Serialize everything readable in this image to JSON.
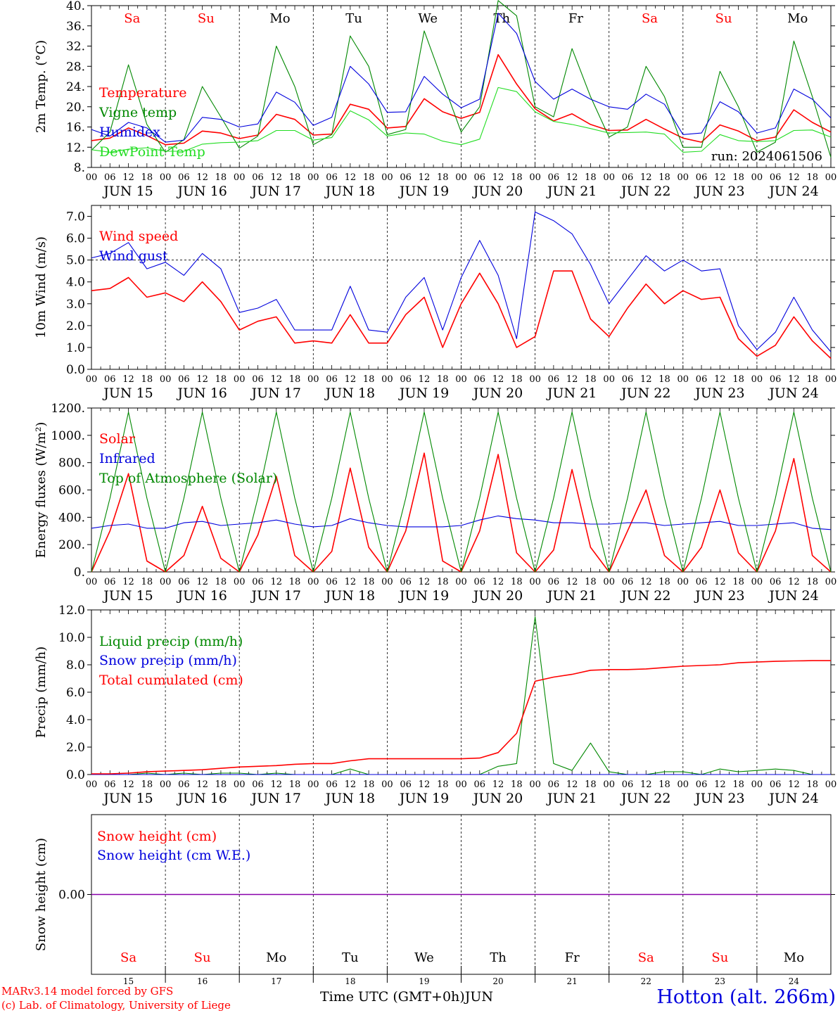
{
  "colors": {
    "red": "#ff0000",
    "green": "#008800",
    "blue": "#0000dd",
    "lightgreen": "#22dd22",
    "purple": "#8800aa",
    "black": "#000000"
  },
  "x_axis": {
    "hour_labels": [
      "00",
      "06",
      "12",
      "18"
    ],
    "end_hour_label": "00",
    "date_labels": [
      "JUN 15",
      "JUN 16",
      "JUN 17",
      "JUN 18",
      "JUN 19",
      "JUN 20",
      "JUN 21",
      "JUN 22",
      "JUN 23",
      "JUN 24"
    ],
    "weekdays": [
      "Sa",
      "Su",
      "Mo",
      "Tu",
      "We",
      "Th",
      "Fr",
      "Sa",
      "Su",
      "Mo"
    ],
    "weekday_colors": [
      "red",
      "red",
      "black",
      "black",
      "black",
      "black",
      "black",
      "red",
      "red",
      "black"
    ],
    "bottom_days": [
      "15",
      "16",
      "17",
      "18",
      "19",
      "20",
      "21",
      "22",
      "23",
      "24"
    ]
  },
  "footer": {
    "model_line": "MARv3.14 model forced by GFS",
    "lab_line": "(c) Lab. of Climatology, University of Liege",
    "time_label": "Time UTC (GMT+0h)",
    "month_label": "JUN",
    "station": "Hotton (alt. 266m)"
  },
  "run_label": "run: 2024061506",
  "chart_data": [
    {
      "type": "line",
      "ylabel": "2m Temp. (°C)",
      "ylim": [
        8,
        40
      ],
      "yticks": [
        8,
        12,
        16,
        20,
        24,
        28,
        32,
        36,
        40
      ],
      "ytick_labels": [
        "8.",
        "12.",
        "16.",
        "20.",
        "24.",
        "28.",
        "32.",
        "36.",
        "40."
      ],
      "show_weekdays": true,
      "show_run_label": true,
      "hours_per_point": 6,
      "series": [
        {
          "name": "Temperature",
          "color": "red",
          "values": [
            13.3,
            13.8,
            15.8,
            14.3,
            12.5,
            12.8,
            15.2,
            14.8,
            13.7,
            14.4,
            18.5,
            17.5,
            14.4,
            14.6,
            20.5,
            19.5,
            15.8,
            16.1,
            21.6,
            19.0,
            17.7,
            18.9,
            30.3,
            24.5,
            19.6,
            17.2,
            18.6,
            16.5,
            15.3,
            15.4,
            17.5,
            15.6,
            13.8,
            13.0,
            16.4,
            15.2,
            13.3,
            14.0,
            19.4,
            16.9,
            15.0
          ]
        },
        {
          "name": "Vigne temp",
          "color": "green",
          "values": [
            11.4,
            15.0,
            28.3,
            16.5,
            11.0,
            13.5,
            24.0,
            18.0,
            11.8,
            14.2,
            32.0,
            24.0,
            12.5,
            14.5,
            34.0,
            28.0,
            14.5,
            15.5,
            35.0,
            25.0,
            15.0,
            20.0,
            41.0,
            38.0,
            20.0,
            18.0,
            31.5,
            22.0,
            14.0,
            16.0,
            28.0,
            22.0,
            12.0,
            12.0,
            27.0,
            20.0,
            11.0,
            13.0,
            33.0,
            22.0,
            10.0
          ]
        },
        {
          "name": "Humidex",
          "color": "blue",
          "values": [
            15.5,
            14.2,
            16.9,
            15.8,
            13.0,
            13.4,
            17.9,
            17.5,
            16.0,
            16.6,
            22.9,
            20.9,
            16.3,
            17.9,
            28.0,
            24.5,
            18.9,
            19.0,
            26.0,
            22.5,
            19.8,
            21.5,
            38.5,
            34.5,
            25.0,
            21.5,
            23.5,
            21.5,
            20.0,
            19.5,
            22.5,
            20.5,
            14.5,
            14.8,
            21.0,
            19.0,
            14.8,
            15.8,
            23.5,
            21.5,
            17.8
          ]
        },
        {
          "name": "DewPoint Temp",
          "color": "lightgreen",
          "values": [
            11.5,
            11.0,
            11.6,
            11.9,
            11.2,
            11.2,
            12.6,
            12.9,
            13.0,
            13.3,
            15.3,
            15.3,
            13.4,
            13.9,
            19.2,
            17.4,
            14.2,
            14.8,
            14.6,
            13.2,
            12.5,
            13.6,
            23.8,
            23.0,
            19.0,
            17.1,
            16.5,
            15.7,
            14.8,
            14.9,
            15.0,
            14.6,
            11.0,
            11.2,
            14.5,
            13.3,
            13.1,
            13.3,
            15.3,
            15.4,
            14.0
          ]
        }
      ],
      "legend_placement": "left"
    },
    {
      "type": "line",
      "ylabel": "10m Wind (m/s)",
      "ylim": [
        0,
        7.5
      ],
      "yticks": [
        0,
        1,
        2,
        3,
        4,
        5,
        6,
        7
      ],
      "ytick_labels": [
        "0.0",
        "1.0",
        "2.0",
        "3.0",
        "4.0",
        "5.0",
        "6.0",
        "7.0"
      ],
      "hline": 5.0,
      "hours_per_point": 6,
      "series": [
        {
          "name": "Wind speed",
          "color": "red",
          "values": [
            3.6,
            3.7,
            4.2,
            3.3,
            3.5,
            3.1,
            4.0,
            3.1,
            1.8,
            2.2,
            2.4,
            1.2,
            1.3,
            1.2,
            2.5,
            1.2,
            1.2,
            2.5,
            3.3,
            1.0,
            3.0,
            4.4,
            3.0,
            1.0,
            1.5,
            4.5,
            4.5,
            2.3,
            1.5,
            2.8,
            3.9,
            3.0,
            3.6,
            3.2,
            3.3,
            1.4,
            0.6,
            1.1,
            2.4,
            1.3,
            0.5
          ]
        },
        {
          "name": "Wind gust",
          "color": "blue",
          "values": [
            5.1,
            5.3,
            5.8,
            4.6,
            4.9,
            4.3,
            5.3,
            4.6,
            2.6,
            2.8,
            3.2,
            1.8,
            1.8,
            1.8,
            3.8,
            1.8,
            1.7,
            3.3,
            4.2,
            1.8,
            4.2,
            5.9,
            4.3,
            1.4,
            7.2,
            6.8,
            6.2,
            4.8,
            3.0,
            4.1,
            5.2,
            4.5,
            5.0,
            4.5,
            4.6,
            2.0,
            0.9,
            1.7,
            3.3,
            1.8,
            0.8
          ]
        }
      ],
      "legend_placement": "left"
    },
    {
      "type": "line",
      "ylabel": "Energy fluxes (W/m²)",
      "ylim": [
        0,
        1200
      ],
      "yticks": [
        0,
        200,
        400,
        600,
        800,
        1000,
        1200
      ],
      "ytick_labels": [
        "0.",
        "200.",
        "400.",
        "600.",
        "800.",
        "1000.",
        "1200."
      ],
      "hours_per_point": 6,
      "series": [
        {
          "name": "Solar",
          "color": "red",
          "values": [
            0,
            300,
            720,
            80,
            0,
            120,
            480,
            100,
            0,
            270,
            700,
            120,
            0,
            150,
            760,
            180,
            0,
            300,
            870,
            80,
            0,
            300,
            860,
            140,
            0,
            160,
            750,
            180,
            0,
            300,
            600,
            120,
            0,
            180,
            600,
            140,
            0,
            300,
            830,
            120,
            0
          ]
        },
        {
          "name": "Infrared",
          "color": "blue",
          "values": [
            320,
            340,
            350,
            320,
            320,
            360,
            370,
            340,
            350,
            360,
            380,
            350,
            330,
            340,
            390,
            360,
            340,
            330,
            330,
            330,
            340,
            380,
            410,
            390,
            380,
            360,
            360,
            350,
            350,
            360,
            360,
            340,
            350,
            360,
            370,
            340,
            340,
            350,
            360,
            320,
            310
          ]
        },
        {
          "name": "Top of Atmosphere (Solar)",
          "color": "green",
          "values": [
            0,
            540,
            1170,
            540,
            0,
            540,
            1170,
            540,
            0,
            540,
            1170,
            540,
            0,
            540,
            1170,
            540,
            0,
            540,
            1170,
            540,
            0,
            540,
            1170,
            540,
            0,
            540,
            1170,
            540,
            0,
            540,
            1170,
            540,
            0,
            540,
            1170,
            540,
            0,
            540,
            1170,
            540,
            0
          ]
        }
      ],
      "legend_placement": "left"
    },
    {
      "type": "line",
      "ylabel": "Precip (mm/h)",
      "ylim": [
        0,
        12
      ],
      "yticks": [
        0,
        2,
        4,
        6,
        8,
        10,
        12
      ],
      "ytick_labels": [
        "0.0",
        "2.0",
        "4.0",
        "6.0",
        "8.0",
        "10.0",
        "12.0"
      ],
      "hours_per_point": 6,
      "series": [
        {
          "name": "Liquid precip (mm/h)",
          "color": "green",
          "values": [
            0,
            0,
            0,
            0.1,
            0,
            0.1,
            0,
            0.1,
            0.1,
            0,
            0.1,
            0,
            0,
            0,
            0.4,
            0,
            0,
            0,
            0,
            0,
            0,
            0,
            0.6,
            0.8,
            11.5,
            0.8,
            0.3,
            2.3,
            0.2,
            0,
            0,
            0.2,
            0.2,
            0,
            0.4,
            0.2,
            0.3,
            0.4,
            0.3,
            0,
            0
          ]
        },
        {
          "name": "Snow precip (mm/h)",
          "color": "blue",
          "values": [
            0,
            0,
            0,
            0,
            0,
            0,
            0,
            0,
            0,
            0,
            0,
            0,
            0,
            0,
            0,
            0,
            0,
            0,
            0,
            0,
            0,
            0,
            0,
            0,
            0,
            0,
            0,
            0,
            0,
            0,
            0,
            0,
            0,
            0,
            0,
            0,
            0,
            0,
            0,
            0,
            0
          ]
        },
        {
          "name": "Total cumulated (cm)",
          "color": "red",
          "values": [
            0.05,
            0.05,
            0.1,
            0.2,
            0.25,
            0.3,
            0.35,
            0.45,
            0.55,
            0.6,
            0.65,
            0.75,
            0.8,
            0.8,
            1.0,
            1.15,
            1.15,
            1.15,
            1.15,
            1.15,
            1.15,
            1.2,
            1.6,
            3.0,
            6.8,
            7.1,
            7.3,
            7.6,
            7.65,
            7.65,
            7.7,
            7.8,
            7.9,
            7.95,
            8.0,
            8.15,
            8.2,
            8.25,
            8.28,
            8.3,
            8.3
          ]
        }
      ],
      "legend_placement": "left"
    },
    {
      "type": "line",
      "ylabel": "Snow height (cm)",
      "ylim": [
        -1,
        1
      ],
      "yticks": [
        0
      ],
      "ytick_labels": [
        "0.00"
      ],
      "show_bottom_weekdays": true,
      "hours_per_point": 6,
      "series": [
        {
          "name": "Snow height (cm)",
          "color": "red",
          "values": [
            0,
            0,
            0,
            0,
            0,
            0,
            0,
            0,
            0,
            0,
            0,
            0,
            0,
            0,
            0,
            0,
            0,
            0,
            0,
            0,
            0,
            0,
            0,
            0,
            0,
            0,
            0,
            0,
            0,
            0,
            0,
            0,
            0,
            0,
            0,
            0,
            0,
            0,
            0,
            0,
            0
          ]
        },
        {
          "name": "Snow height (cm W.E.)",
          "color": "blue",
          "values": [
            0,
            0,
            0,
            0,
            0,
            0,
            0,
            0,
            0,
            0,
            0,
            0,
            0,
            0,
            0,
            0,
            0,
            0,
            0,
            0,
            0,
            0,
            0,
            0,
            0,
            0,
            0,
            0,
            0,
            0,
            0,
            0,
            0,
            0,
            0,
            0,
            0,
            0,
            0,
            0,
            0
          ]
        }
      ],
      "zero_line_color": "purple",
      "legend_placement": "left"
    }
  ]
}
